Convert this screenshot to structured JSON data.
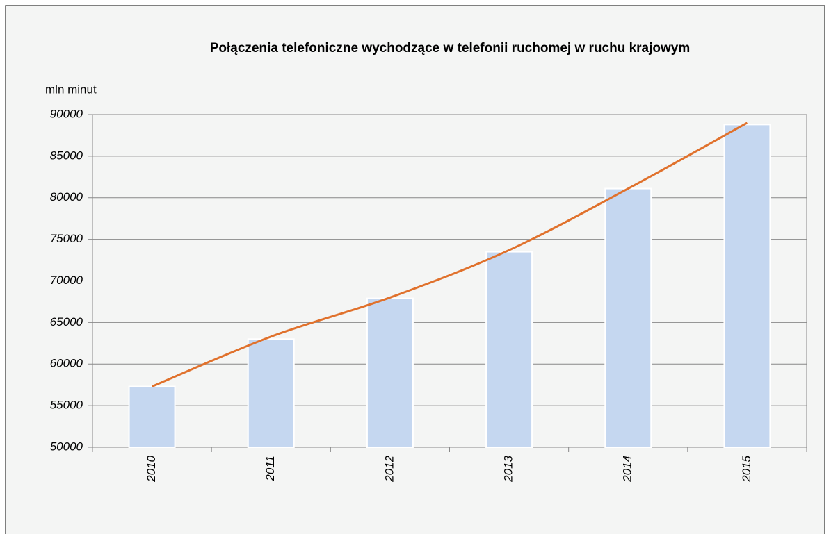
{
  "chart_data": {
    "type": "bar",
    "title": "Połączenia telefoniczne wychodzące w telefonii ruchomej w ruchu krajowym",
    "y_label": "mln minut",
    "categories": [
      "2010",
      "2011",
      "2012",
      "2013",
      "2014",
      "2015"
    ],
    "values": [
      57300,
      63000,
      67900,
      73500,
      81100,
      88800
    ],
    "color": "#c5d7f0",
    "trend": {
      "color": "#e0712c",
      "values": [
        57300,
        63300,
        68000,
        73700,
        81100,
        89000
      ]
    },
    "ylim": [
      50000,
      90000
    ],
    "yticks": [
      50000,
      55000,
      60000,
      65000,
      70000,
      75000,
      80000,
      85000,
      90000
    ],
    "grid": true
  }
}
